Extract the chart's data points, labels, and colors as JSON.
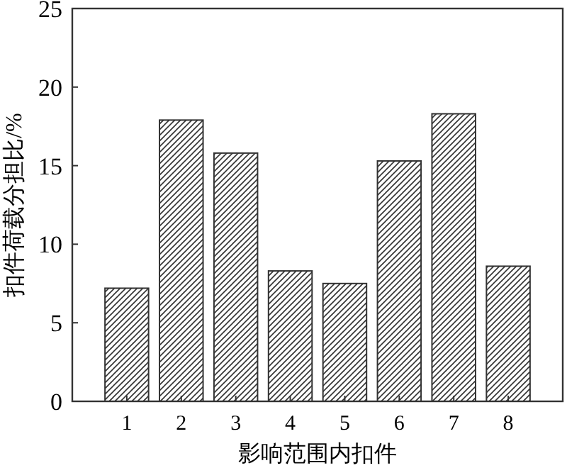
{
  "chart_data": {
    "type": "bar",
    "xlabel": "影响范围内扣件",
    "ylabel": "扣件荷载分担比/%",
    "categories": [
      "1",
      "2",
      "3",
      "4",
      "5",
      "6",
      "7",
      "8"
    ],
    "values": [
      7.2,
      17.9,
      15.8,
      8.3,
      7.5,
      15.3,
      18.3,
      8.6
    ],
    "color": "#333333",
    "ylim": [
      0,
      25
    ],
    "yticks": [
      0,
      5,
      10,
      15,
      20,
      25
    ],
    "grid": false
  }
}
